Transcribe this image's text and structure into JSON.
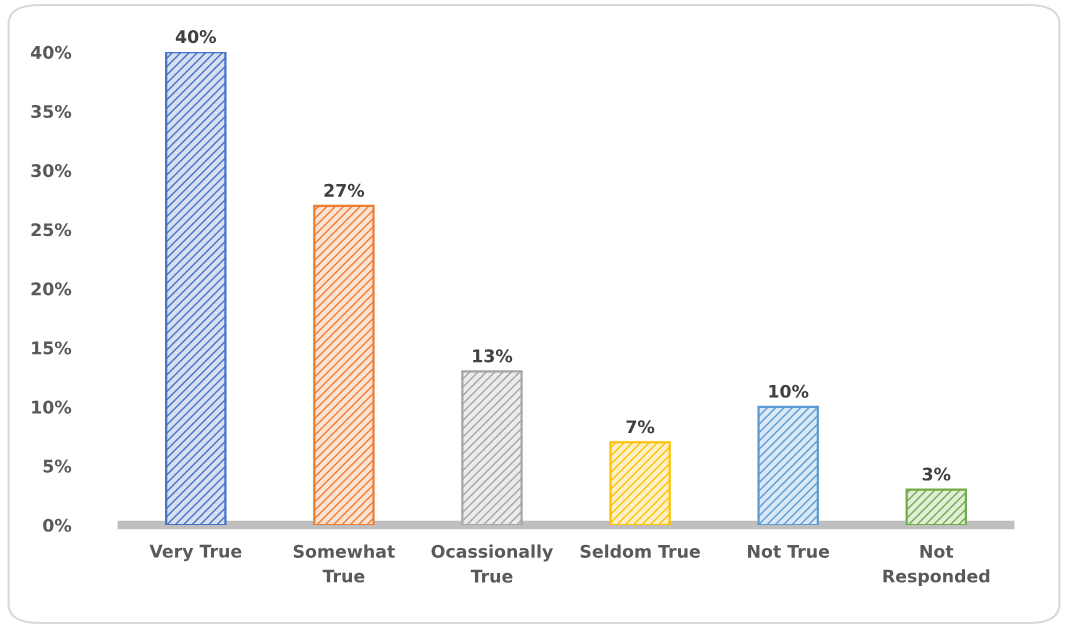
{
  "chart_data": {
    "type": "bar",
    "categories": [
      "Very True",
      "Somewhat True",
      "Ocassionally True",
      "Seldom True",
      "Not True",
      "Not Responded"
    ],
    "values": [
      40,
      27,
      13,
      7,
      10,
      3
    ],
    "value_labels": [
      "40%",
      "27%",
      "13%",
      "7%",
      "10%",
      "3%"
    ],
    "colors": [
      "#4472c4",
      "#ed7d31",
      "#a5a5a5",
      "#ffc000",
      "#5b9bd5",
      "#70ad47"
    ],
    "ylim": [
      0,
      40
    ],
    "yticks": [
      {
        "value": 0,
        "label": "0%"
      },
      {
        "value": 5,
        "label": "5%"
      },
      {
        "value": 10,
        "label": "10%"
      },
      {
        "value": 15,
        "label": "15%"
      },
      {
        "value": 20,
        "label": "20%"
      },
      {
        "value": 25,
        "label": "25%"
      },
      {
        "value": 30,
        "label": "30%"
      },
      {
        "value": 35,
        "label": "35%"
      },
      {
        "value": 40,
        "label": "40%"
      }
    ],
    "grid": false,
    "legend": false
  }
}
